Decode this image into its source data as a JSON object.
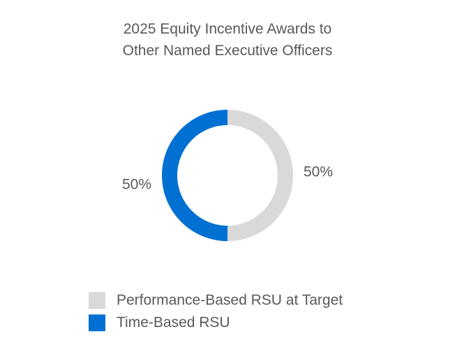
{
  "chart_data": {
    "type": "pie",
    "donut": true,
    "title_lines": [
      "2025 Equity Incentive Awards to",
      "Other Named Executive Officers"
    ],
    "categories": [
      "Performance-Based RSU at Target",
      "Time-Based RSU"
    ],
    "values": [
      50,
      50
    ],
    "value_labels": [
      "50%",
      "50%"
    ],
    "colors": [
      "#d9d9d9",
      "#0070d2"
    ],
    "legend_position": "bottom",
    "xlabel": "",
    "ylabel": ""
  }
}
